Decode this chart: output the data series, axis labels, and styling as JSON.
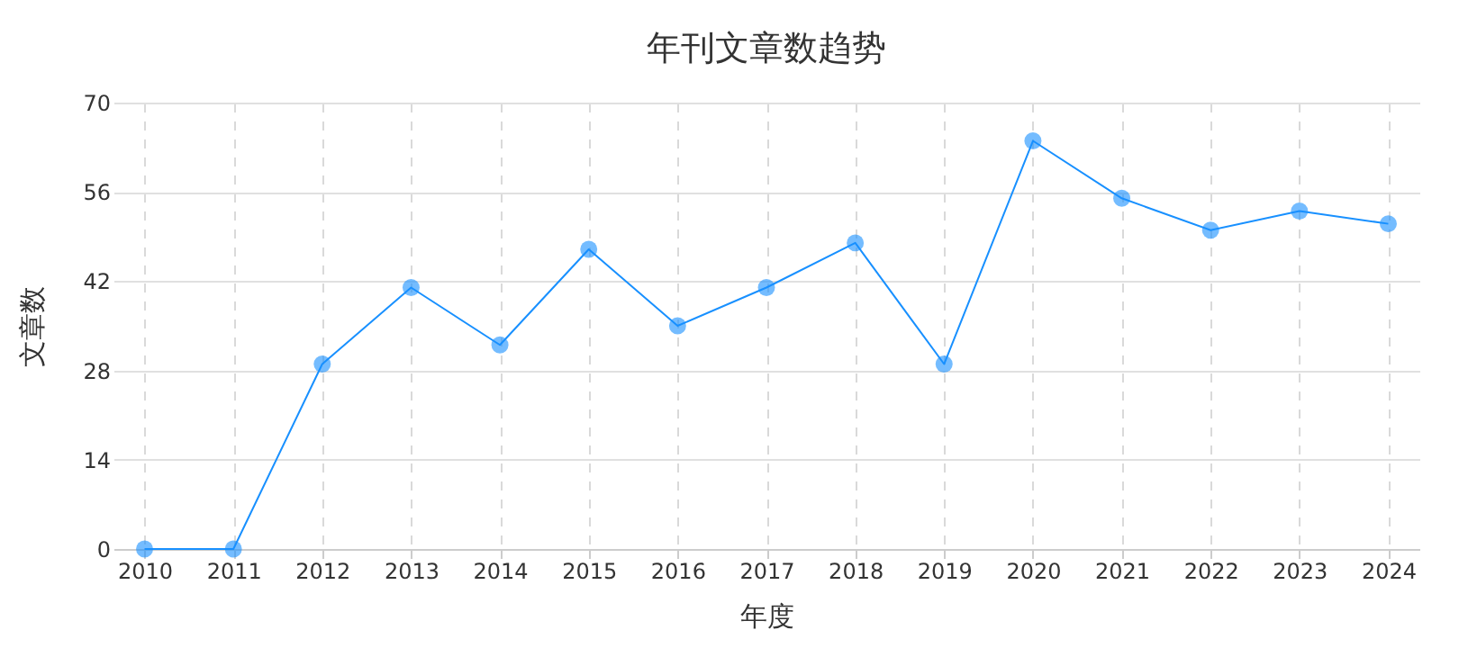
{
  "chart_data": {
    "type": "line",
    "title": "年刊文章数趋势",
    "xlabel": "年度",
    "ylabel": "文章数",
    "categories": [
      "2010",
      "2011",
      "2012",
      "2013",
      "2014",
      "2015",
      "2016",
      "2017",
      "2018",
      "2019",
      "2020",
      "2021",
      "2022",
      "2023",
      "2024"
    ],
    "series": [
      {
        "color": "#1890ff",
        "values": [
          0,
          0,
          29,
          41,
          32,
          47,
          35,
          41,
          48,
          29,
          64,
          55,
          50,
          53,
          51
        ]
      }
    ],
    "ylim": [
      0,
      70
    ],
    "yticks": [
      0,
      14,
      28,
      42,
      56,
      70
    ],
    "grid": true,
    "marker": "circle",
    "line_style": "solid"
  }
}
